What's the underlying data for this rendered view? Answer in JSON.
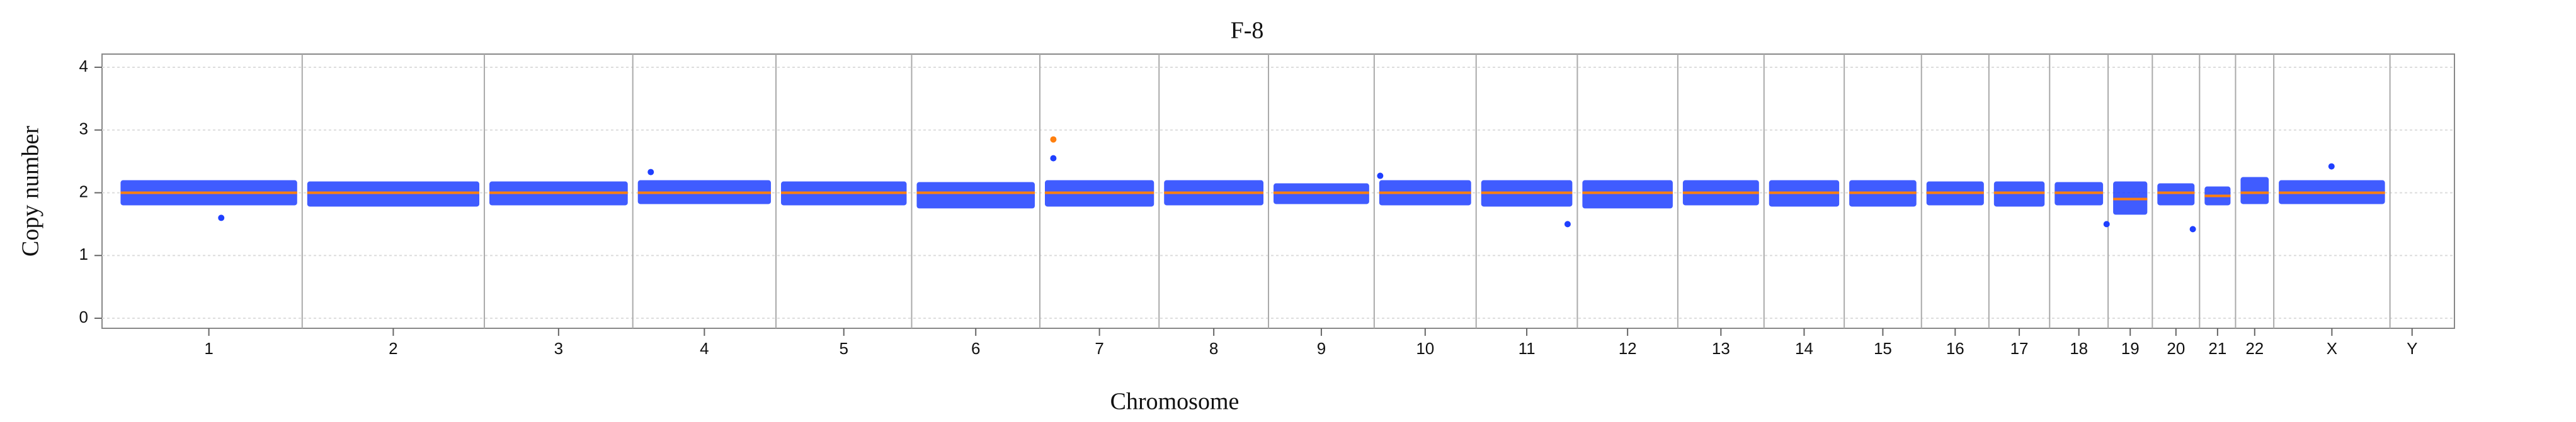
{
  "chart_data": {
    "type": "copy-number",
    "title": "F-8",
    "x_label": "Chromosome",
    "y_label": "Copy number",
    "categories": [
      "1",
      "2",
      "3",
      "4",
      "5",
      "6",
      "7",
      "8",
      "9",
      "10",
      "11",
      "12",
      "13",
      "14",
      "15",
      "16",
      "17",
      "18",
      "19",
      "20",
      "21",
      "22",
      "X",
      "Y"
    ],
    "chrom_lengths": [
      249,
      243,
      198,
      191,
      181,
      171,
      159,
      146,
      141,
      136,
      135,
      134,
      115,
      107,
      103,
      90,
      81,
      78,
      59,
      63,
      48,
      51,
      155,
      59
    ],
    "xlim": [
      -18,
      3120
    ],
    "ylim": [
      -0.16,
      4.21
    ],
    "yticks": [
      0,
      1,
      2,
      3,
      4
    ],
    "grid": true,
    "segment_color": "#ff7f0e",
    "point_color": "#1f3fff",
    "segments": [
      2,
      2,
      2,
      2,
      2,
      2,
      2,
      2,
      2,
      2,
      2,
      2,
      2,
      2,
      2,
      2,
      2,
      2,
      1.9,
      2,
      1.95,
      2,
      2,
      null
    ],
    "low": [
      1.8,
      1.78,
      1.8,
      1.82,
      1.8,
      1.75,
      1.78,
      1.8,
      1.82,
      1.8,
      1.78,
      1.75,
      1.8,
      1.78,
      1.78,
      1.8,
      1.78,
      1.8,
      1.65,
      1.8,
      1.8,
      1.82,
      1.82,
      null
    ],
    "high": [
      2.2,
      2.18,
      2.18,
      2.2,
      2.18,
      2.17,
      2.2,
      2.2,
      2.15,
      2.2,
      2.2,
      2.2,
      2.2,
      2.2,
      2.2,
      2.18,
      2.18,
      2.17,
      2.18,
      2.15,
      2.1,
      2.25,
      2.2,
      null
    ],
    "outliers": {
      "x": [
        141,
        714,
        1251,
        1687,
        1937,
        2656,
        2771,
        2956
      ],
      "y": [
        1.6,
        2.33,
        2.55,
        2.27,
        1.5,
        1.5,
        1.42,
        2.42
      ]
    },
    "highlight": {
      "x": [
        1251
      ],
      "y": [
        2.85
      ]
    }
  }
}
